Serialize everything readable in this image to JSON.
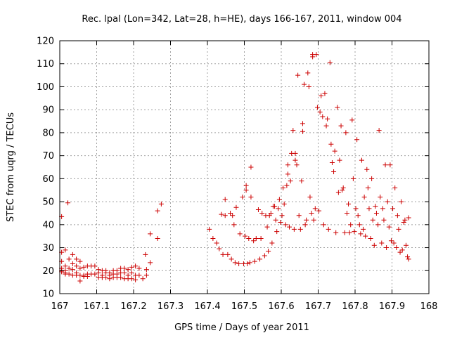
{
  "chart_data": {
    "type": "scatter",
    "title": "Rec. lpal (Lon=342, Lat=28, h=HE), days 166-167, 2011, window 004",
    "xlabel": "GPS time / Days of year 2011",
    "ylabel": "STEC from uqrg / TECUs",
    "xlim": [
      167,
      168
    ],
    "ylim": [
      10,
      120
    ],
    "xticks": [
      "167",
      "167.1",
      "167.2",
      "167.3",
      "167.4",
      "167.5",
      "167.6",
      "167.7",
      "167.8",
      "167.9",
      "168"
    ],
    "yticks": [
      "10",
      "20",
      "30",
      "40",
      "50",
      "60",
      "70",
      "80",
      "90",
      "100",
      "110",
      "120"
    ],
    "grid": true,
    "marker": "+",
    "colors": {
      "marker": "#cc0000",
      "grid": "#a0a0a0",
      "axis": "#000000"
    },
    "points": [
      [
        167.005,
        43.5
      ],
      [
        167.005,
        28
      ],
      [
        167.005,
        24
      ],
      [
        167.005,
        21
      ],
      [
        167.005,
        20
      ],
      [
        167.005,
        19.5
      ],
      [
        167.015,
        29
      ],
      [
        167.015,
        22
      ],
      [
        167.015,
        20
      ],
      [
        167.015,
        19
      ],
      [
        167.015,
        18.5
      ],
      [
        167.022,
        49.5
      ],
      [
        167.025,
        25
      ],
      [
        167.025,
        21
      ],
      [
        167.025,
        18.5
      ],
      [
        167.035,
        27
      ],
      [
        167.035,
        23
      ],
      [
        167.035,
        20.5
      ],
      [
        167.035,
        18
      ],
      [
        167.045,
        25
      ],
      [
        167.045,
        22
      ],
      [
        167.045,
        19
      ],
      [
        167.045,
        18
      ],
      [
        167.055,
        24
      ],
      [
        167.055,
        21
      ],
      [
        167.055,
        18
      ],
      [
        167.055,
        15.5
      ],
      [
        167.065,
        21.5
      ],
      [
        167.065,
        18
      ],
      [
        167.065,
        17.5
      ],
      [
        167.075,
        22
      ],
      [
        167.075,
        18.5
      ],
      [
        167.075,
        17.5
      ],
      [
        167.085,
        22
      ],
      [
        167.085,
        18.5
      ],
      [
        167.095,
        22
      ],
      [
        167.095,
        18.5
      ],
      [
        167.105,
        20.5
      ],
      [
        167.105,
        19
      ],
      [
        167.105,
        17
      ],
      [
        167.115,
        20
      ],
      [
        167.115,
        18
      ],
      [
        167.115,
        17
      ],
      [
        167.125,
        20
      ],
      [
        167.125,
        19
      ],
      [
        167.125,
        17
      ],
      [
        167.135,
        19
      ],
      [
        167.135,
        18
      ],
      [
        167.135,
        16.5
      ],
      [
        167.145,
        20
      ],
      [
        167.145,
        18.5
      ],
      [
        167.145,
        17
      ],
      [
        167.155,
        20
      ],
      [
        167.155,
        18.5
      ],
      [
        167.155,
        17
      ],
      [
        167.165,
        21
      ],
      [
        167.165,
        19
      ],
      [
        167.165,
        17
      ],
      [
        167.175,
        21
      ],
      [
        167.175,
        19
      ],
      [
        167.175,
        16.5
      ],
      [
        167.185,
        20.5
      ],
      [
        167.185,
        18
      ],
      [
        167.185,
        16.5
      ],
      [
        167.195,
        21.5
      ],
      [
        167.195,
        19
      ],
      [
        167.195,
        16.5
      ],
      [
        167.205,
        22
      ],
      [
        167.205,
        18
      ],
      [
        167.205,
        16
      ],
      [
        167.215,
        21
      ],
      [
        167.215,
        18
      ],
      [
        167.225,
        16.5
      ],
      [
        167.232,
        27
      ],
      [
        167.235,
        20.5
      ],
      [
        167.235,
        18
      ],
      [
        167.245,
        36
      ],
      [
        167.245,
        23.5
      ],
      [
        167.265,
        46
      ],
      [
        167.265,
        34
      ],
      [
        167.275,
        49
      ],
      [
        167.405,
        38
      ],
      [
        167.415,
        34
      ],
      [
        167.425,
        32
      ],
      [
        167.432,
        29.5
      ],
      [
        167.438,
        44.5
      ],
      [
        167.442,
        27
      ],
      [
        167.448,
        44
      ],
      [
        167.448,
        51
      ],
      [
        167.455,
        27
      ],
      [
        167.462,
        45
      ],
      [
        167.465,
        25
      ],
      [
        167.468,
        44
      ],
      [
        167.472,
        40
      ],
      [
        167.475,
        23.5
      ],
      [
        167.478,
        47.5
      ],
      [
        167.485,
        23
      ],
      [
        167.488,
        36
      ],
      [
        167.495,
        52
      ],
      [
        167.498,
        23
      ],
      [
        167.502,
        35
      ],
      [
        167.505,
        57
      ],
      [
        167.505,
        55
      ],
      [
        167.508,
        23
      ],
      [
        167.512,
        34
      ],
      [
        167.515,
        23.5
      ],
      [
        167.518,
        52
      ],
      [
        167.518,
        65
      ],
      [
        167.525,
        33
      ],
      [
        167.528,
        24
      ],
      [
        167.532,
        34
      ],
      [
        167.538,
        46.5
      ],
      [
        167.542,
        25
      ],
      [
        167.545,
        34
      ],
      [
        167.548,
        45
      ],
      [
        167.555,
        26.5
      ],
      [
        167.558,
        44
      ],
      [
        167.562,
        39
      ],
      [
        167.565,
        28.5
      ],
      [
        167.568,
        44
      ],
      [
        167.572,
        45
      ],
      [
        167.575,
        32
      ],
      [
        167.578,
        48
      ],
      [
        167.582,
        48
      ],
      [
        167.585,
        42
      ],
      [
        167.588,
        37
      ],
      [
        167.592,
        47
      ],
      [
        167.595,
        51
      ],
      [
        167.598,
        41
      ],
      [
        167.602,
        44
      ],
      [
        167.605,
        56
      ],
      [
        167.608,
        49
      ],
      [
        167.612,
        40
      ],
      [
        167.615,
        57
      ],
      [
        167.618,
        62
      ],
      [
        167.618,
        66
      ],
      [
        167.622,
        39
      ],
      [
        167.625,
        59
      ],
      [
        167.628,
        71
      ],
      [
        167.632,
        81
      ],
      [
        167.635,
        38
      ],
      [
        167.638,
        71
      ],
      [
        167.638,
        68
      ],
      [
        167.642,
        66
      ],
      [
        167.645,
        105
      ],
      [
        167.648,
        44
      ],
      [
        167.652,
        38
      ],
      [
        167.655,
        59
      ],
      [
        167.658,
        84
      ],
      [
        167.658,
        80.5
      ],
      [
        167.662,
        101
      ],
      [
        167.665,
        40
      ],
      [
        167.668,
        42
      ],
      [
        167.672,
        106
      ],
      [
        167.675,
        100
      ],
      [
        167.678,
        52
      ],
      [
        167.682,
        45
      ],
      [
        167.685,
        113
      ],
      [
        167.685,
        114
      ],
      [
        167.688,
        42
      ],
      [
        167.692,
        47
      ],
      [
        167.695,
        114
      ],
      [
        167.698,
        91
      ],
      [
        167.702,
        46
      ],
      [
        167.705,
        89
      ],
      [
        167.708,
        96
      ],
      [
        167.712,
        87
      ],
      [
        167.715,
        40
      ],
      [
        167.718,
        97
      ],
      [
        167.722,
        83
      ],
      [
        167.725,
        86
      ],
      [
        167.728,
        38
      ],
      [
        167.732,
        110.5
      ],
      [
        167.735,
        75
      ],
      [
        167.738,
        67
      ],
      [
        167.742,
        63
      ],
      [
        167.745,
        72
      ],
      [
        167.748,
        36.5
      ],
      [
        167.752,
        91
      ],
      [
        167.755,
        54
      ],
      [
        167.758,
        68
      ],
      [
        167.762,
        83
      ],
      [
        167.765,
        55
      ],
      [
        167.768,
        56
      ],
      [
        167.772,
        36.5
      ],
      [
        167.775,
        80
      ],
      [
        167.778,
        45
      ],
      [
        167.782,
        49
      ],
      [
        167.785,
        36.5
      ],
      [
        167.788,
        40
      ],
      [
        167.792,
        85.5
      ],
      [
        167.795,
        60
      ],
      [
        167.798,
        37
      ],
      [
        167.802,
        47
      ],
      [
        167.805,
        77
      ],
      [
        167.808,
        44
      ],
      [
        167.812,
        40
      ],
      [
        167.815,
        36
      ],
      [
        167.818,
        68
      ],
      [
        167.822,
        38
      ],
      [
        167.825,
        52
      ],
      [
        167.828,
        35
      ],
      [
        167.832,
        64
      ],
      [
        167.835,
        56
      ],
      [
        167.838,
        47
      ],
      [
        167.842,
        34
      ],
      [
        167.845,
        60
      ],
      [
        167.848,
        42
      ],
      [
        167.852,
        31
      ],
      [
        167.855,
        48
      ],
      [
        167.858,
        45
      ],
      [
        167.862,
        40
      ],
      [
        167.865,
        81
      ],
      [
        167.868,
        52
      ],
      [
        167.872,
        32
      ],
      [
        167.875,
        47
      ],
      [
        167.878,
        42
      ],
      [
        167.882,
        66
      ],
      [
        167.885,
        30
      ],
      [
        167.888,
        50
      ],
      [
        167.892,
        39
      ],
      [
        167.895,
        66
      ],
      [
        167.898,
        33
      ],
      [
        167.902,
        47
      ],
      [
        167.905,
        32
      ],
      [
        167.908,
        56
      ],
      [
        167.912,
        30
      ],
      [
        167.915,
        44
      ],
      [
        167.918,
        38
      ],
      [
        167.922,
        28
      ],
      [
        167.925,
        50
      ],
      [
        167.928,
        29
      ],
      [
        167.932,
        41
      ],
      [
        167.935,
        42
      ],
      [
        167.938,
        31
      ],
      [
        167.942,
        26
      ],
      [
        167.945,
        43
      ],
      [
        167.945,
        25
      ]
    ]
  }
}
